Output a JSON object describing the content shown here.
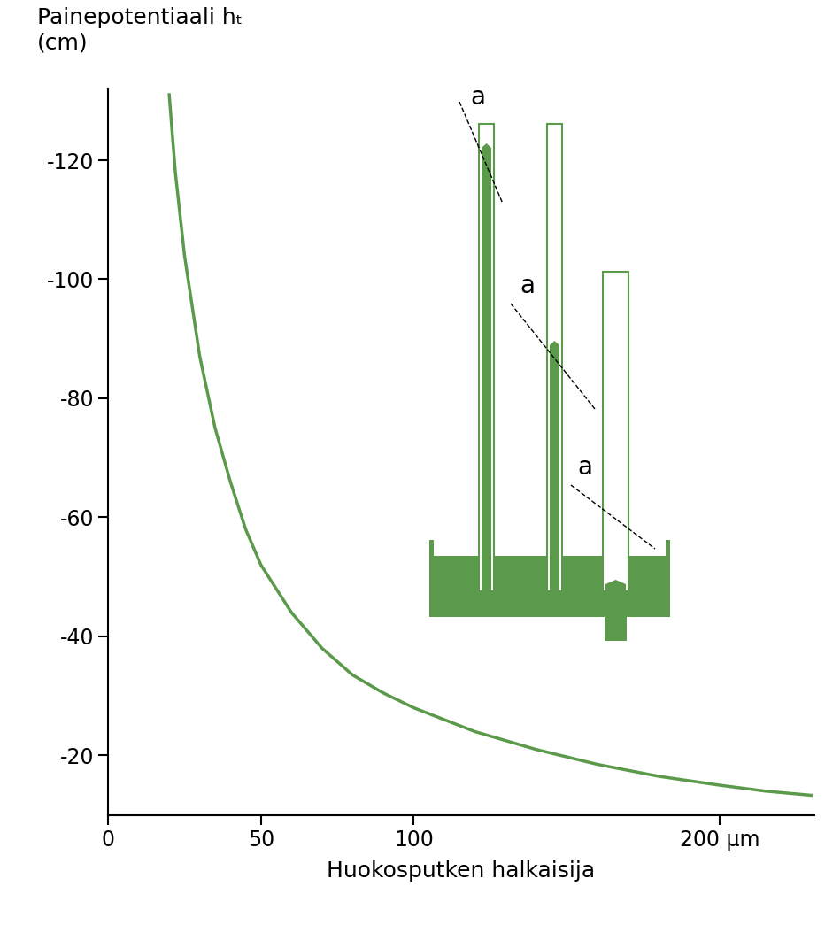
{
  "chart_data": {
    "type": "line",
    "x_label": "Huokosputken halkaisija",
    "y_label": "Painepotentiaali hₜ\n(cm)",
    "x": [
      20,
      22,
      25,
      30,
      35,
      40,
      45,
      50,
      60,
      70,
      80,
      90,
      100,
      120,
      140,
      160,
      180,
      200,
      215,
      230
    ],
    "values": [
      -131,
      -118,
      -104,
      -87,
      -75,
      -66,
      -58,
      -52,
      -44,
      -38,
      -33.5,
      -30.5,
      -28,
      -24,
      -21,
      -18.5,
      -16.5,
      -15,
      -14,
      -13.3
    ],
    "color": "#5b9a4a",
    "xlim": [
      0,
      231
    ],
    "ylim": [
      -10,
      -132
    ],
    "xticks": [
      0,
      50,
      100,
      {
        "value": 200,
        "label": "200 µm"
      }
    ],
    "yticks": [
      -120,
      -100,
      -80,
      -60,
      -40,
      -20
    ],
    "grid": false
  },
  "diagram": {
    "annotations": [
      "a",
      "a",
      "a"
    ]
  }
}
